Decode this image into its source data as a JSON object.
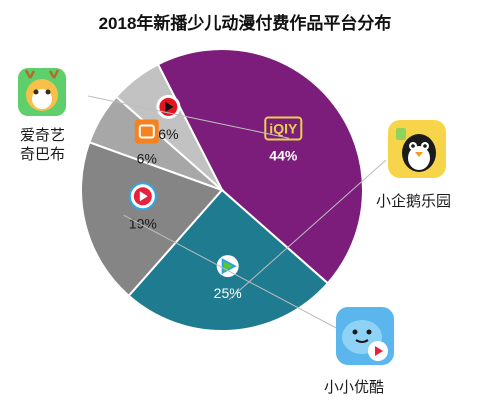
{
  "chart_data": {
    "type": "pie",
    "title": "2018年新播少儿动漫付费作品平台分布",
    "slices": [
      {
        "name": "爱奇艺",
        "caption": "爱奇艺\n奇巴布",
        "value": 44,
        "label": "44%",
        "color": "#7c1d7c",
        "label_color": "#ffffff",
        "icon": "iqiyi-logo-icon"
      },
      {
        "name": "小企鹅乐园",
        "caption": "小企鹅乐园",
        "value": 25,
        "label": "25%",
        "color": "#1f7b8f",
        "label_color": "#ffffff",
        "icon": "tencent-video-icon"
      },
      {
        "name": "小小优酷",
        "caption": "小小优酷",
        "value": 19,
        "label": "19%",
        "color": "#858585",
        "label_color": "#1a1a1a",
        "icon": "youku-icon"
      },
      {
        "name": "芒果",
        "caption": "",
        "value": 6,
        "label": "6%",
        "color": "#a7a7a7",
        "label_color": "#1a1a1a",
        "icon": "mango-tv-icon"
      },
      {
        "name": "搜狐",
        "caption": "",
        "value": 6,
        "label": "6%",
        "color": "#c2c2c2",
        "label_color": "#1a1a1a",
        "icon": "sohu-video-icon"
      }
    ],
    "legend": "none"
  }
}
